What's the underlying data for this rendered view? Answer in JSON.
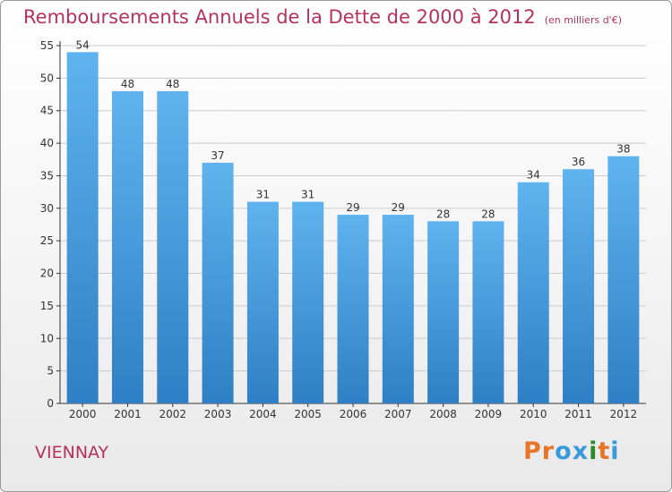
{
  "title": "Remboursements Annuels de la Dette de 2000 à 2012",
  "unit_label": "(en milliers d'€)",
  "place": "VIENNAY",
  "brand": {
    "letters": [
      "P",
      "r",
      "o",
      "x",
      "i",
      "t",
      "i"
    ],
    "colors": [
      "#e8742a",
      "#e8742a",
      "#3a9ad9",
      "#3a9ad9",
      "#2b8a2b",
      "#e8742a",
      "#3a9ad9"
    ]
  },
  "colors": {
    "bar": "#4a9fe0",
    "bar_light": "#5fb3ee",
    "bar_dark": "#2f7fc4",
    "title": "#b5325e",
    "axis": "#333333",
    "grid": "#cccccc"
  },
  "chart_data": {
    "type": "bar",
    "categories": [
      "2000",
      "2001",
      "2002",
      "2003",
      "2004",
      "2005",
      "2006",
      "2007",
      "2008",
      "2009",
      "2010",
      "2011",
      "2012"
    ],
    "values": [
      54,
      48,
      48,
      37,
      31,
      31,
      29,
      29,
      28,
      28,
      34,
      36,
      38
    ],
    "ylim": [
      0,
      55
    ],
    "yticks": [
      0,
      5,
      10,
      15,
      20,
      25,
      30,
      35,
      40,
      45,
      50,
      55
    ],
    "grid": true,
    "data_labels": true
  }
}
